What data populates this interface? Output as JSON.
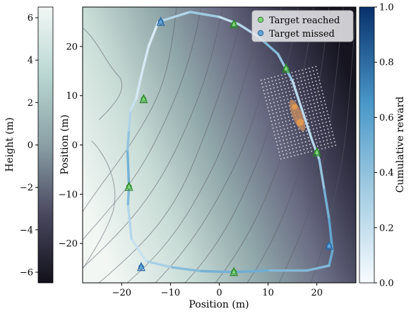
{
  "chart_data": {
    "type": "line",
    "main_plot": {
      "xlabel": "Position (m)",
      "ylabel": "Position (m)",
      "xlim": [
        -28,
        28
      ],
      "ylim": [
        -28,
        28
      ],
      "x_ticks": [
        -20,
        -10,
        0,
        10,
        20
      ],
      "y_ticks": [
        -20,
        -10,
        0,
        10,
        20
      ],
      "background": "height contour map",
      "legend_position": "top-right",
      "legend": [
        {
          "label": "Target reached",
          "color": "#7fd37a"
        },
        {
          "label": "Target missed",
          "color": "#5fa3d8"
        }
      ],
      "path": {
        "x": [
          -12.5,
          -6,
          0,
          4,
          8,
          12,
          15,
          17,
          19,
          20.5,
          21.5,
          22.5,
          23.2,
          22.5,
          18,
          10,
          3,
          -4,
          -10,
          -15,
          -18,
          -18.7,
          -18.5,
          -18.8,
          -18.5,
          -18.2,
          -17,
          -16,
          -14.5,
          -12.5
        ],
        "y": [
          25,
          27,
          26,
          24.5,
          22,
          18.5,
          13,
          7,
          1,
          -3,
          -9,
          -15,
          -21.5,
          -24.5,
          -25.5,
          -25.5,
          -25.8,
          -25.6,
          -24.8,
          -23.6,
          -19,
          -12,
          -8.5,
          -1,
          3,
          7,
          9.5,
          14,
          20,
          25
        ],
        "reward": [
          0.1,
          0.4,
          0.25,
          0.15,
          0.35,
          0.55,
          0.2,
          0.25,
          0.2,
          0.3,
          0.45,
          0.55,
          0.6,
          0.5,
          0.4,
          0.5,
          0.55,
          0.45,
          0.4,
          0.2,
          0.15,
          0.35,
          0.55,
          0.45,
          0.3,
          0.25,
          0.1,
          0.15,
          0.1,
          0.1
        ]
      },
      "targets": [
        {
          "x": -12,
          "y": 25,
          "status": "missed"
        },
        {
          "x": 3,
          "y": 24.5,
          "status": "reached"
        },
        {
          "x": 13.7,
          "y": 15.5,
          "status": "reached"
        },
        {
          "x": 20,
          "y": -1.5,
          "status": "reached"
        },
        {
          "x": 22.5,
          "y": -20.5,
          "status": "missed"
        },
        {
          "x": 3,
          "y": -25.8,
          "status": "reached"
        },
        {
          "x": -16,
          "y": -24.8,
          "status": "missed"
        },
        {
          "x": -18.5,
          "y": -8.5,
          "status": "reached"
        },
        {
          "x": -15.5,
          "y": 9.3,
          "status": "reached"
        }
      ],
      "vehicle": {
        "x": 16,
        "y": 6
      }
    },
    "height_colorbar": {
      "label": "Height (m)",
      "range": [
        -6.5,
        6.5
      ],
      "ticks": [
        -6,
        -4,
        -2,
        0,
        2,
        4,
        6
      ],
      "colors": [
        "#12111a",
        "#4a4860",
        "#8aa0a6",
        "#b9d6d1",
        "#f1f7f5"
      ]
    },
    "reward_colorbar": {
      "label": "Cumulative reward",
      "range": [
        0.0,
        1.0
      ],
      "ticks": [
        0.0,
        0.2,
        0.4,
        0.6,
        0.8,
        1.0
      ],
      "colors": [
        "#f7fbff",
        "#9ecae1",
        "#4a98c9",
        "#08306b"
      ]
    }
  }
}
